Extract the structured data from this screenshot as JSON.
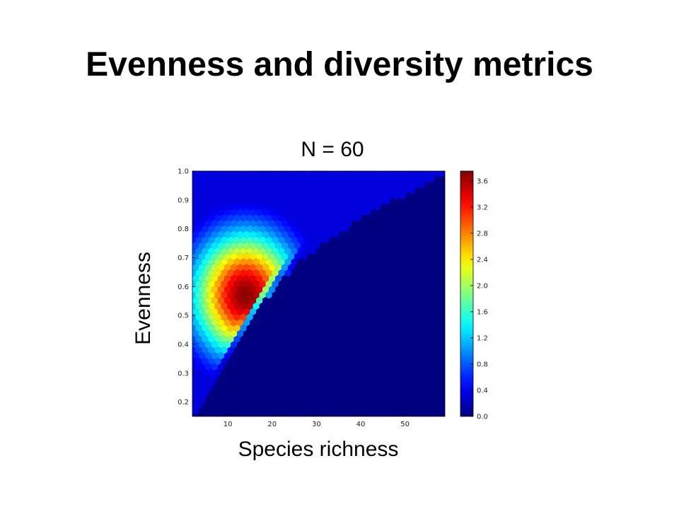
{
  "slide": {
    "title": "Evenness and diversity metrics"
  },
  "chart_data": {
    "type": "heatmap",
    "subtype": "hexbin",
    "title": "N = 60",
    "xlabel": "Species richness",
    "ylabel": "Evenness",
    "xlim": [
      2,
      59
    ],
    "ylim": [
      0.15,
      1.0
    ],
    "x_ticks": [
      10,
      20,
      30,
      40,
      50
    ],
    "y_ticks": [
      0.2,
      0.3,
      0.4,
      0.5,
      0.6,
      0.7,
      0.8,
      0.9,
      1.0
    ],
    "colorbar": {
      "min": 0.0,
      "max": 3.75,
      "ticks": [
        0.0,
        0.4,
        0.8,
        1.2,
        1.6,
        2.0,
        2.4,
        2.8,
        3.2,
        3.6
      ],
      "colormap": "jet"
    },
    "density_peak": {
      "x": 14,
      "y": 0.57,
      "value": 3.7
    },
    "lower_boundary": [
      {
        "x": 3,
        "y": 0.16
      },
      {
        "x": 8,
        "y": 0.3
      },
      {
        "x": 14,
        "y": 0.46
      },
      {
        "x": 20,
        "y": 0.59
      },
      {
        "x": 27,
        "y": 0.7
      },
      {
        "x": 36,
        "y": 0.8
      },
      {
        "x": 46,
        "y": 0.89
      },
      {
        "x": 58,
        "y": 0.99
      }
    ],
    "upper_boundary_level": 0.99,
    "background_value": 0.0
  },
  "colors": {
    "background": "#ffffff",
    "plot_background": "#00008f"
  }
}
